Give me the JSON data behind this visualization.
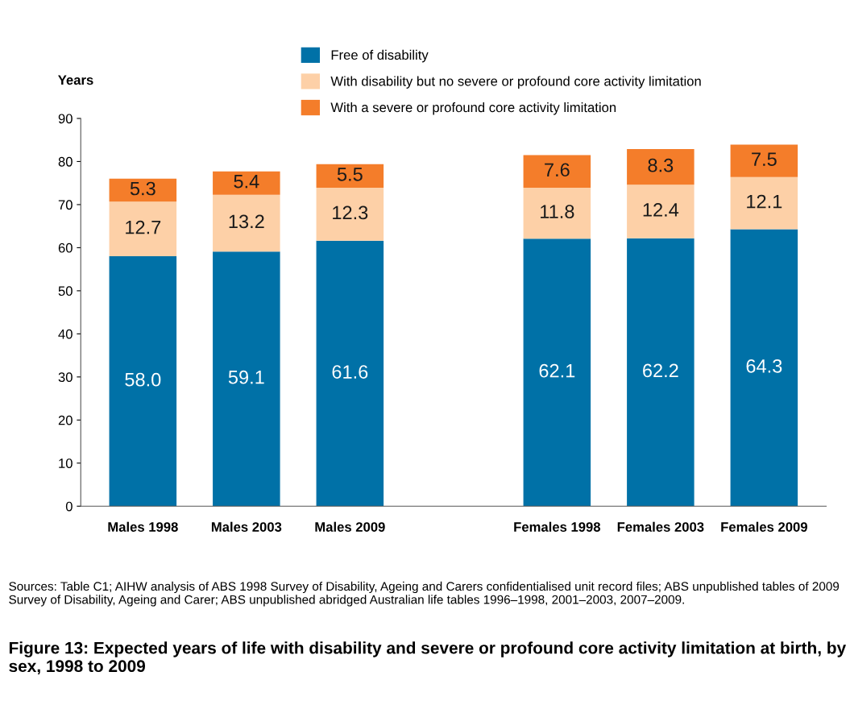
{
  "chart_data": {
    "type": "bar",
    "stacked": true,
    "title": "Figure 13: Expected years of life with disability and severe or profound core activity limitation at birth, by sex, 1998 to 2009",
    "ylabel": "Years",
    "annotations": [
      "Sources: Table C1; AIHW analysis of ABS 1998 Survey of Disability, Ageing and Carers confidentialised unit record files; ABS unpublished tables of 2009 Survey of Disability, Ageing and Carer; ABS unpublished abridged Australian life tables 1996–1998, 2001–2003, 2007–2009."
    ],
    "categories": [
      "Males 1998",
      "Males 2003",
      "Males 2009",
      null,
      "Females 1998",
      "Females 2003",
      "Females 2009"
    ],
    "series": [
      {
        "name": "Free of disability",
        "color": "#0071a7",
        "values": [
          58.0,
          59.1,
          61.6,
          null,
          62.1,
          62.2,
          64.3
        ],
        "value_labels": [
          "58.0",
          "59.1",
          "61.6",
          null,
          "62.1",
          "62.2",
          "64.3"
        ]
      },
      {
        "name": "With disability but no severe or profound core activity limitation",
        "color": "#fdd0a7",
        "values": [
          12.7,
          13.2,
          12.3,
          null,
          11.8,
          12.4,
          12.1
        ],
        "value_labels": [
          "12.7",
          "13.2",
          "12.3",
          null,
          "11.8",
          "12.4",
          "12.1"
        ]
      },
      {
        "name": "With a severe or profound core activity limitation",
        "color": "#f47d2a",
        "values": [
          5.3,
          5.4,
          5.5,
          null,
          7.6,
          8.3,
          7.5
        ],
        "value_labels": [
          "5.3",
          "5.4",
          "5.5",
          null,
          "7.6",
          "8.3",
          "7.5"
        ]
      }
    ],
    "ylim": [
      0,
      90
    ],
    "yticks": [
      0,
      10,
      20,
      30,
      40,
      50,
      60,
      70,
      80,
      90
    ],
    "legend": "top",
    "grid": false
  }
}
